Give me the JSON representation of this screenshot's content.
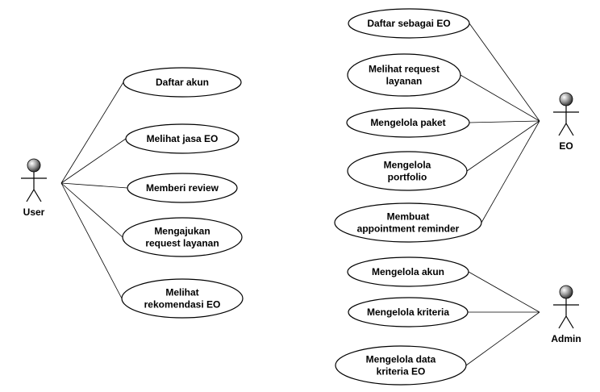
{
  "actors": [
    {
      "id": "user",
      "label": "User"
    },
    {
      "id": "eo",
      "label": "EO"
    },
    {
      "id": "admin",
      "label": "Admin"
    }
  ],
  "use_cases": [
    {
      "id": "daftar-akun",
      "actor": "user",
      "lines": [
        "Daftar akun"
      ]
    },
    {
      "id": "melihat-jasa-eo",
      "actor": "user",
      "lines": [
        "Melihat jasa EO"
      ]
    },
    {
      "id": "memberi-review",
      "actor": "user",
      "lines": [
        "Memberi review"
      ]
    },
    {
      "id": "mengajukan-request",
      "actor": "user",
      "lines": [
        "Mengajukan",
        "request layanan"
      ]
    },
    {
      "id": "melihat-rekomendasi",
      "actor": "user",
      "lines": [
        "Melihat",
        "rekomendasi EO"
      ]
    },
    {
      "id": "daftar-sebagai-eo",
      "actor": "eo",
      "lines": [
        "Daftar sebagai EO"
      ]
    },
    {
      "id": "melihat-request",
      "actor": "eo",
      "lines": [
        "Melihat request",
        "layanan"
      ]
    },
    {
      "id": "mengelola-paket",
      "actor": "eo",
      "lines": [
        "Mengelola paket"
      ]
    },
    {
      "id": "mengelola-portfolio",
      "actor": "eo",
      "lines": [
        "Mengelola",
        "portfolio"
      ]
    },
    {
      "id": "membuat-reminder",
      "actor": "eo",
      "lines": [
        "Membuat",
        "appointment reminder"
      ]
    },
    {
      "id": "mengelola-akun",
      "actor": "admin",
      "lines": [
        "Mengelola akun"
      ]
    },
    {
      "id": "mengelola-kriteria",
      "actor": "admin",
      "lines": [
        "Mengelola kriteria"
      ]
    },
    {
      "id": "mengelola-data-kriteria",
      "actor": "admin",
      "lines": [
        "Mengelola data",
        "kriteria EO"
      ]
    }
  ]
}
